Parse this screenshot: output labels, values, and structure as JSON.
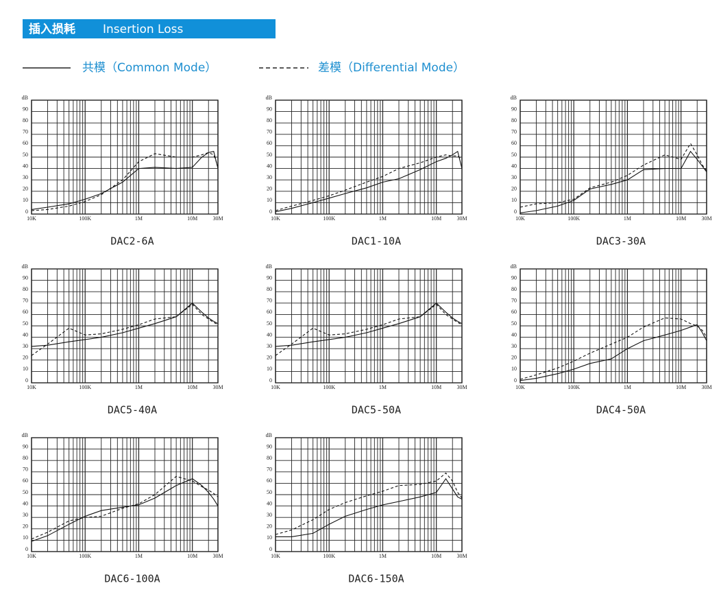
{
  "header": {
    "title_cn": "插入损耗",
    "title_en": "Insertion Loss",
    "color": "#1190d9"
  },
  "legend": [
    {
      "name": "共模（Common Mode）",
      "dash": false
    },
    {
      "name": "差模（Differential Mode）",
      "dash": true
    }
  ],
  "chart_data": [
    {
      "type": "line",
      "title": "DAC2-6A",
      "ylabel": "dB",
      "log_x": true,
      "x": [
        10000,
        20000,
        50000,
        100000,
        200000,
        500000,
        1000000,
        2000000,
        5000000,
        10000000,
        15000000,
        20000000,
        25000000,
        30000000
      ],
      "xlim": [
        10000,
        30000000
      ],
      "xticks": [
        {
          "value": 10000,
          "label": "10K"
        },
        {
          "value": 100000,
          "label": "100K"
        },
        {
          "value": 1000000,
          "label": "1M"
        },
        {
          "value": 10000000,
          "label": "10M"
        },
        {
          "value": 30000000,
          "label": "30M"
        }
      ],
      "xgrid": [
        20000,
        30000,
        40000,
        50000,
        60000,
        70000,
        80000,
        90000,
        200000,
        300000,
        400000,
        500000,
        600000,
        700000,
        800000,
        900000,
        2000000,
        3000000,
        4000000,
        5000000,
        6000000,
        7000000,
        8000000,
        9000000,
        20000000
      ],
      "ylim": [
        0,
        100
      ],
      "yticks": [
        0,
        10,
        20,
        30,
        40,
        50,
        60,
        70,
        80,
        90
      ],
      "series": [
        {
          "values": [
            4,
            6,
            9,
            13,
            18,
            28,
            40,
            41,
            40,
            41,
            50,
            54,
            55,
            40
          ]
        },
        {
          "values": [
            3,
            4,
            7,
            11,
            17,
            30,
            46,
            53,
            50,
            50,
            52,
            54,
            52,
            42
          ]
        }
      ]
    },
    {
      "type": "line",
      "title": "DAC1-10A",
      "ylabel": "dB",
      "log_x": true,
      "x": [
        10000,
        20000,
        50000,
        100000,
        200000,
        500000,
        1000000,
        2000000,
        5000000,
        10000000,
        15000000,
        20000000,
        25000000,
        30000000
      ],
      "xlim": [
        10000,
        30000000
      ],
      "xticks": [
        {
          "value": 10000,
          "label": "10K"
        },
        {
          "value": 100000,
          "label": "100K"
        },
        {
          "value": 1000000,
          "label": "1M"
        },
        {
          "value": 10000000,
          "label": "10M"
        },
        {
          "value": 30000000,
          "label": "30M"
        }
      ],
      "xgrid": [
        20000,
        30000,
        40000,
        50000,
        60000,
        70000,
        80000,
        90000,
        200000,
        300000,
        400000,
        500000,
        600000,
        700000,
        800000,
        900000,
        2000000,
        3000000,
        4000000,
        5000000,
        6000000,
        7000000,
        8000000,
        9000000,
        20000000
      ],
      "ylim": [
        0,
        100
      ],
      "yticks": [
        0,
        10,
        20,
        30,
        40,
        50,
        60,
        70,
        80,
        90
      ],
      "series": [
        {
          "values": [
            2,
            5,
            10,
            14,
            18,
            23,
            28,
            31,
            39,
            46,
            49,
            52,
            55,
            40
          ]
        },
        {
          "values": [
            3,
            7,
            12,
            16,
            21,
            28,
            33,
            40,
            45,
            50,
            52,
            51,
            51,
            48
          ]
        }
      ]
    },
    {
      "type": "line",
      "title": "DAC3-30A",
      "ylabel": "dB",
      "log_x": true,
      "x": [
        10000,
        20000,
        50000,
        100000,
        200000,
        500000,
        1000000,
        2000000,
        5000000,
        10000000,
        15000000,
        20000000,
        25000000,
        30000000
      ],
      "xlim": [
        10000,
        30000000
      ],
      "xticks": [
        {
          "value": 10000,
          "label": "10K"
        },
        {
          "value": 100000,
          "label": "100K"
        },
        {
          "value": 1000000,
          "label": "1M"
        },
        {
          "value": 10000000,
          "label": "10M"
        },
        {
          "value": 30000000,
          "label": "30M"
        }
      ],
      "xgrid": [
        20000,
        30000,
        40000,
        50000,
        60000,
        70000,
        80000,
        90000,
        200000,
        300000,
        400000,
        500000,
        600000,
        700000,
        800000,
        900000,
        2000000,
        3000000,
        4000000,
        5000000,
        6000000,
        7000000,
        8000000,
        9000000,
        20000000
      ],
      "ylim": [
        0,
        100
      ],
      "yticks": [
        0,
        10,
        20,
        30,
        40,
        50,
        60,
        70,
        80,
        90
      ],
      "series": [
        {
          "values": [
            1,
            3,
            7,
            12,
            22,
            26,
            30,
            39,
            40,
            40,
            55,
            48,
            42,
            37
          ]
        },
        {
          "values": [
            6,
            9,
            10,
            13,
            23,
            28,
            34,
            43,
            52,
            48,
            62,
            52,
            43,
            38
          ]
        }
      ]
    },
    {
      "type": "line",
      "title": "DAC5-40A",
      "ylabel": "dB",
      "log_x": true,
      "x": [
        10000,
        20000,
        50000,
        100000,
        200000,
        500000,
        1000000,
        2000000,
        5000000,
        10000000,
        15000000,
        20000000,
        25000000,
        30000000
      ],
      "xlim": [
        10000,
        30000000
      ],
      "xticks": [
        {
          "value": 10000,
          "label": "10K"
        },
        {
          "value": 100000,
          "label": "100K"
        },
        {
          "value": 1000000,
          "label": "1M"
        },
        {
          "value": 10000000,
          "label": "10M"
        },
        {
          "value": 30000000,
          "label": "30M"
        }
      ],
      "xgrid": [
        20000,
        30000,
        40000,
        50000,
        60000,
        70000,
        80000,
        90000,
        200000,
        300000,
        400000,
        500000,
        600000,
        700000,
        800000,
        900000,
        2000000,
        3000000,
        4000000,
        5000000,
        6000000,
        7000000,
        8000000,
        9000000,
        20000000
      ],
      "ylim": [
        0,
        100
      ],
      "yticks": [
        0,
        10,
        20,
        30,
        40,
        50,
        60,
        70,
        80,
        90
      ],
      "series": [
        {
          "values": [
            32,
            33,
            36,
            38,
            40,
            44,
            48,
            52,
            58,
            70,
            62,
            57,
            54,
            52
          ]
        },
        {
          "values": [
            24,
            34,
            48,
            42,
            43,
            47,
            51,
            56,
            58,
            69,
            60,
            56,
            53,
            51
          ]
        }
      ]
    },
    {
      "type": "line",
      "title": "DAC5-50A",
      "ylabel": "dB",
      "log_x": true,
      "x": [
        10000,
        20000,
        50000,
        100000,
        200000,
        500000,
        1000000,
        2000000,
        5000000,
        10000000,
        15000000,
        20000000,
        25000000,
        30000000
      ],
      "xlim": [
        10000,
        30000000
      ],
      "xticks": [
        {
          "value": 10000,
          "label": "10K"
        },
        {
          "value": 100000,
          "label": "100K"
        },
        {
          "value": 1000000,
          "label": "1M"
        },
        {
          "value": 10000000,
          "label": "10M"
        },
        {
          "value": 30000000,
          "label": "30M"
        }
      ],
      "xgrid": [
        20000,
        30000,
        40000,
        50000,
        60000,
        70000,
        80000,
        90000,
        200000,
        300000,
        400000,
        500000,
        600000,
        700000,
        800000,
        900000,
        2000000,
        3000000,
        4000000,
        5000000,
        6000000,
        7000000,
        8000000,
        9000000,
        20000000
      ],
      "ylim": [
        0,
        100
      ],
      "yticks": [
        0,
        10,
        20,
        30,
        40,
        50,
        60,
        70,
        80,
        90
      ],
      "series": [
        {
          "values": [
            32,
            33,
            36,
            38,
            40,
            44,
            48,
            52,
            58,
            70,
            62,
            57,
            54,
            52
          ]
        },
        {
          "values": [
            24,
            34,
            48,
            42,
            43,
            47,
            51,
            56,
            58,
            69,
            60,
            56,
            53,
            51
          ]
        }
      ]
    },
    {
      "type": "line",
      "title": "DAC4-50A",
      "ylabel": "dB",
      "log_x": true,
      "x": [
        10000,
        20000,
        50000,
        100000,
        200000,
        500000,
        1000000,
        2000000,
        5000000,
        10000000,
        15000000,
        20000000,
        25000000,
        30000000
      ],
      "xlim": [
        10000,
        30000000
      ],
      "xticks": [
        {
          "value": 10000,
          "label": "10K"
        },
        {
          "value": 100000,
          "label": "100K"
        },
        {
          "value": 1000000,
          "label": "1M"
        },
        {
          "value": 10000000,
          "label": "10M"
        },
        {
          "value": 30000000,
          "label": "30M"
        }
      ],
      "xgrid": [
        20000,
        30000,
        40000,
        50000,
        60000,
        70000,
        80000,
        90000,
        200000,
        300000,
        400000,
        500000,
        600000,
        700000,
        800000,
        900000,
        2000000,
        3000000,
        4000000,
        5000000,
        6000000,
        7000000,
        8000000,
        9000000,
        20000000
      ],
      "ylim": [
        0,
        100
      ],
      "yticks": [
        0,
        10,
        20,
        30,
        40,
        50,
        60,
        70,
        80,
        90
      ],
      "series": [
        {
          "values": [
            2,
            4,
            8,
            12,
            17,
            21,
            30,
            37,
            42,
            46,
            49,
            51,
            44,
            37
          ]
        },
        {
          "values": [
            3,
            7,
            13,
            19,
            26,
            34,
            40,
            49,
            57,
            56,
            52,
            50,
            46,
            40
          ]
        }
      ]
    },
    {
      "type": "line",
      "title": "DAC6-100A",
      "ylabel": "dB",
      "log_x": true,
      "x": [
        10000,
        20000,
        50000,
        100000,
        200000,
        500000,
        1000000,
        2000000,
        5000000,
        10000000,
        15000000,
        20000000,
        25000000,
        30000000
      ],
      "xlim": [
        10000,
        30000000
      ],
      "xticks": [
        {
          "value": 10000,
          "label": "10K"
        },
        {
          "value": 100000,
          "label": "100K"
        },
        {
          "value": 1000000,
          "label": "1M"
        },
        {
          "value": 10000000,
          "label": "10M"
        },
        {
          "value": 30000000,
          "label": "30M"
        }
      ],
      "xgrid": [
        20000,
        30000,
        40000,
        50000,
        60000,
        70000,
        80000,
        90000,
        200000,
        300000,
        400000,
        500000,
        600000,
        700000,
        800000,
        900000,
        2000000,
        3000000,
        4000000,
        5000000,
        6000000,
        7000000,
        8000000,
        9000000,
        20000000
      ],
      "ylim": [
        0,
        100
      ],
      "yticks": [
        0,
        10,
        20,
        30,
        40,
        50,
        60,
        70,
        80,
        90
      ],
      "series": [
        {
          "values": [
            9,
            14,
            24,
            31,
            36,
            39,
            41,
            47,
            58,
            64,
            58,
            52,
            46,
            40
          ]
        },
        {
          "values": [
            11,
            17,
            27,
            30,
            31,
            38,
            42,
            50,
            66,
            62,
            57,
            54,
            51,
            48
          ]
        }
      ]
    },
    {
      "type": "line",
      "title": "DAC6-150A",
      "ylabel": "dB",
      "log_x": true,
      "x": [
        10000,
        20000,
        50000,
        100000,
        200000,
        500000,
        1000000,
        2000000,
        5000000,
        10000000,
        15000000,
        20000000,
        25000000,
        30000000
      ],
      "xlim": [
        10000,
        30000000
      ],
      "xticks": [
        {
          "value": 10000,
          "label": "10K"
        },
        {
          "value": 100000,
          "label": "100K"
        },
        {
          "value": 1000000,
          "label": "1M"
        },
        {
          "value": 10000000,
          "label": "10M"
        },
        {
          "value": 30000000,
          "label": "30M"
        }
      ],
      "xgrid": [
        20000,
        30000,
        40000,
        50000,
        60000,
        70000,
        80000,
        90000,
        200000,
        300000,
        400000,
        500000,
        600000,
        700000,
        800000,
        900000,
        2000000,
        3000000,
        4000000,
        5000000,
        6000000,
        7000000,
        8000000,
        9000000,
        20000000
      ],
      "ylim": [
        0,
        100
      ],
      "yticks": [
        0,
        10,
        20,
        30,
        40,
        50,
        60,
        70,
        80,
        90
      ],
      "series": [
        {
          "values": [
            13,
            13,
            16,
            24,
            31,
            37,
            41,
            44,
            48,
            52,
            64,
            55,
            48,
            46
          ]
        },
        {
          "values": [
            15,
            19,
            28,
            37,
            43,
            49,
            53,
            58,
            59,
            62,
            69,
            62,
            52,
            47
          ]
        }
      ]
    }
  ]
}
